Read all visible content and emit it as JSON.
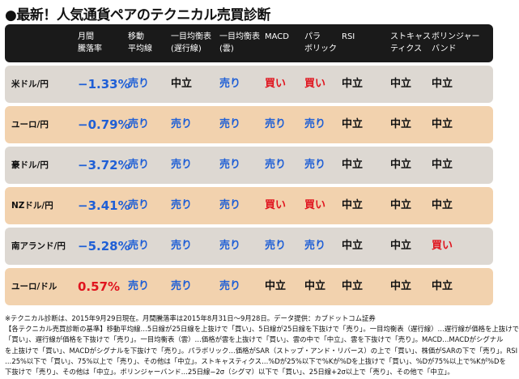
{
  "title": "●最新！人気通貨ペアのテクニカル売買診断",
  "headers": [
    {
      "key": "pair",
      "line1": "",
      "line2": ""
    },
    {
      "key": "rate",
      "line1": "月間",
      "line2": "騰落率"
    },
    {
      "key": "ma",
      "line1": "移動",
      "line2": "平均線"
    },
    {
      "key": "ichimoku_conv",
      "line1": "一目均衡表",
      "line2": "(遅行線)"
    },
    {
      "key": "ichimoku_cloud",
      "line1": "一目均衡表",
      "line2": "(雲)"
    },
    {
      "key": "macd",
      "line1": "MACD",
      "line2": ""
    },
    {
      "key": "sar",
      "line1": "パラ",
      "line2": "ボリック"
    },
    {
      "key": "rsi",
      "line1": "RSI",
      "line2": ""
    },
    {
      "key": "stoch",
      "line1": "ストキャス",
      "line2": "ティクス"
    },
    {
      "key": "bb",
      "line1": "ボリンジャー",
      "line2": "バンド"
    }
  ],
  "rows": [
    {
      "pair": "米ドル/円",
      "rate": "−1.33%",
      "rate_sign": "neg",
      "bg": "gray",
      "signals": [
        "売り",
        "中立",
        "売り",
        "買い",
        "買い",
        "中立",
        "中立",
        "中立"
      ]
    },
    {
      "pair": "ユーロ/円",
      "rate": "−0.79%",
      "rate_sign": "neg",
      "bg": "tan",
      "signals": [
        "売り",
        "売り",
        "売り",
        "売り",
        "売り",
        "中立",
        "中立",
        "中立"
      ]
    },
    {
      "pair": "豪ドル/円",
      "rate": "−3.72%",
      "rate_sign": "neg",
      "bg": "gray",
      "signals": [
        "売り",
        "売り",
        "売り",
        "売り",
        "売り",
        "中立",
        "中立",
        "中立"
      ]
    },
    {
      "pair": "NZドル/円",
      "rate": "−3.41%",
      "rate_sign": "neg",
      "bg": "tan",
      "signals": [
        "売り",
        "売り",
        "売り",
        "買い",
        "買い",
        "中立",
        "中立",
        "中立"
      ]
    },
    {
      "pair": "南アランド/円",
      "rate": "−5.28%",
      "rate_sign": "neg",
      "bg": "gray",
      "signals": [
        "売り",
        "売り",
        "売り",
        "売り",
        "売り",
        "中立",
        "中立",
        "買い"
      ]
    },
    {
      "pair": "ユーロ/ドル",
      "rate": "0.57%",
      "rate_sign": "pos",
      "bg": "tan",
      "signals": [
        "売り",
        "売り",
        "売り",
        "中立",
        "中立",
        "中立",
        "中立",
        "中立"
      ]
    }
  ],
  "notes": [
    "※テクニカル診断は、2015年9月29日現在。月間騰落率は2015年8月31日～9月28日。データ提供：カブドットコム証券",
    "【各テクニカル売買診断の基準】移動平均線…5日線が25日線を上抜けで「買い」、5日線が25日線を下抜けで「売り」。一目均衡表（遅行線）…遅行線が価格を上抜けで",
    "「買い」、遅行線が価格を下抜けで「売り」。一目均衡表（雲）…価格が雲を上抜けで「買い」、雲の中で「中立」、雲を下抜けで「売り」。MACD…MACDがシグナル",
    "を上抜けで「買い」、MACDがシグナルを下抜けで「売り」。パラボリック…価格がSAR（ストップ・アンド・リバース）の上で「買い」、株価がSARの下で「売り」。RSI",
    "…25%以下で「買い」、75%以上で「売り」、その他は「中立」。ストキャスティクス…%Dが25%以下で%Kが%Dを上抜けで「買い」、%Dが75%以上で%Kが%Dを",
    "下抜けで「売り」、その他は「中立」。ボリンジャーバンド…25日線−2σ（シグマ）以下で「買い」、25日線+2σ以上で「売り」、その他で「中立」。"
  ],
  "colors": {
    "sell": "#1f5fd6",
    "buy": "#e0141e",
    "neutral": "#111111",
    "row_gray": "#ddd8d2",
    "row_tan": "#f2d2ae",
    "header_bg": "#1a1a1a"
  }
}
